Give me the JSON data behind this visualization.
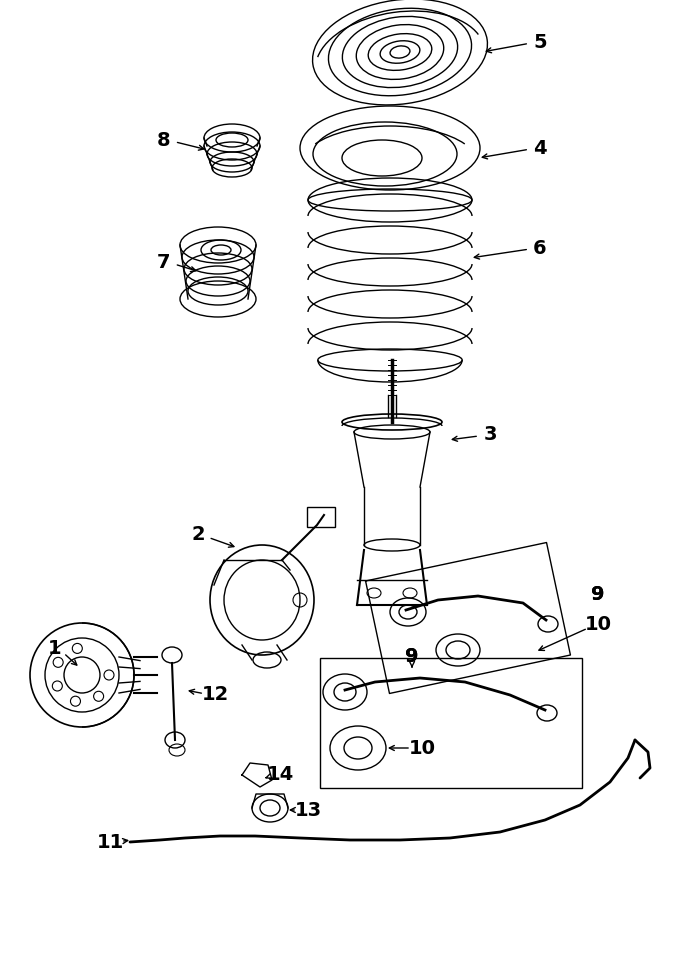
{
  "bg_color": "#ffffff",
  "line_color": "#000000",
  "fig_width": 6.98,
  "fig_height": 9.61,
  "dpi": 100,
  "lw": 1.0
}
